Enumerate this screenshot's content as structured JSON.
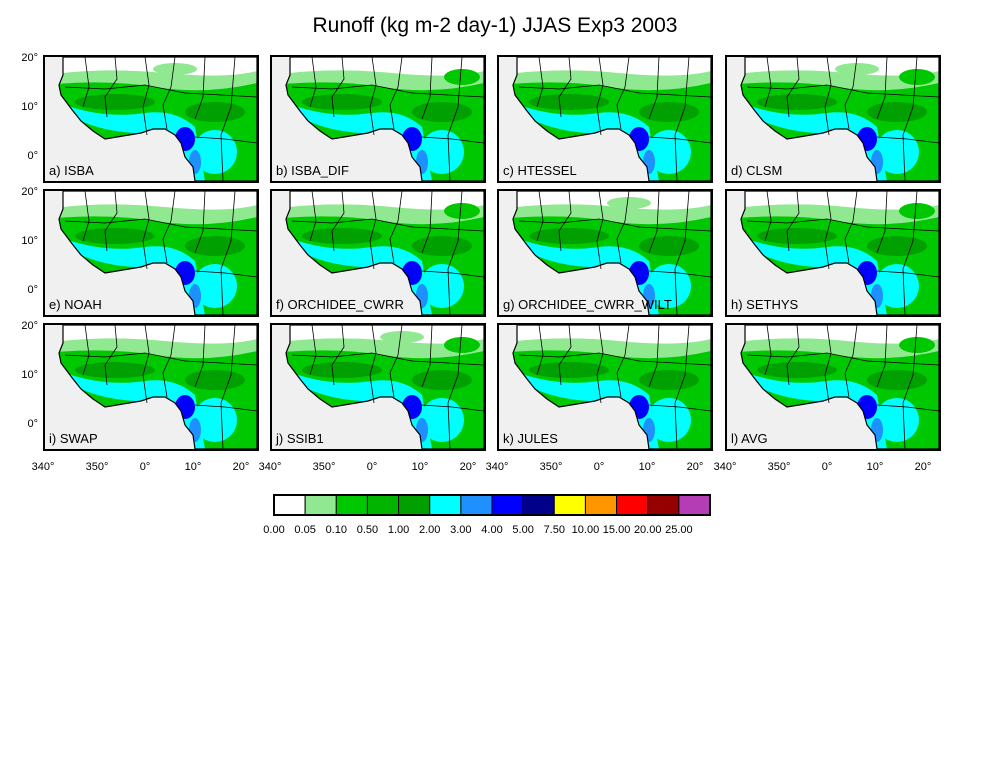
{
  "title": "Runoff (kg m-2 day-1) JJAS Exp3 2003",
  "lat_ticks": [
    "20°",
    "10°",
    "0°"
  ],
  "lon_ticks": [
    "340°",
    "350°",
    "0°",
    "10°",
    "20°"
  ],
  "panels": [
    {
      "label": "a) ISBA"
    },
    {
      "label": "b) ISBA_DIF"
    },
    {
      "label": "c) HTESSEL"
    },
    {
      "label": "d) CLSM"
    },
    {
      "label": "e) NOAH"
    },
    {
      "label": "f) ORCHIDEE_CWRR"
    },
    {
      "label": "g) ORCHIDEE_CWRR_WILT"
    },
    {
      "label": "h) SETHYS"
    },
    {
      "label": "i) SWAP"
    },
    {
      "label": "j) SSIB1"
    },
    {
      "label": "k) JULES"
    },
    {
      "label": "l) AVG"
    }
  ],
  "colorbar": {
    "colors": [
      "#ffffff",
      "#90e890",
      "#00c800",
      "#00b400",
      "#00a000",
      "#00ffff",
      "#1e90ff",
      "#0000ff",
      "#00008b",
      "#ffff00",
      "#ff9600",
      "#ff0000",
      "#960000",
      "#b43cb4"
    ],
    "labels": [
      "0.00",
      "0.05",
      "0.10",
      "0.50",
      "1.00",
      "2.00",
      "3.00",
      "4.00",
      "5.00",
      "7.50",
      "10.00",
      "15.00",
      "20.00",
      "25.00"
    ]
  },
  "colors": {
    "land_grey": "#f0f0f0",
    "coast_blue": "#00ffff",
    "deep_blue": "#0000ff",
    "light_green": "#90e890",
    "green": "#00c800",
    "dark_green": "#00a000",
    "border": "#000000"
  }
}
